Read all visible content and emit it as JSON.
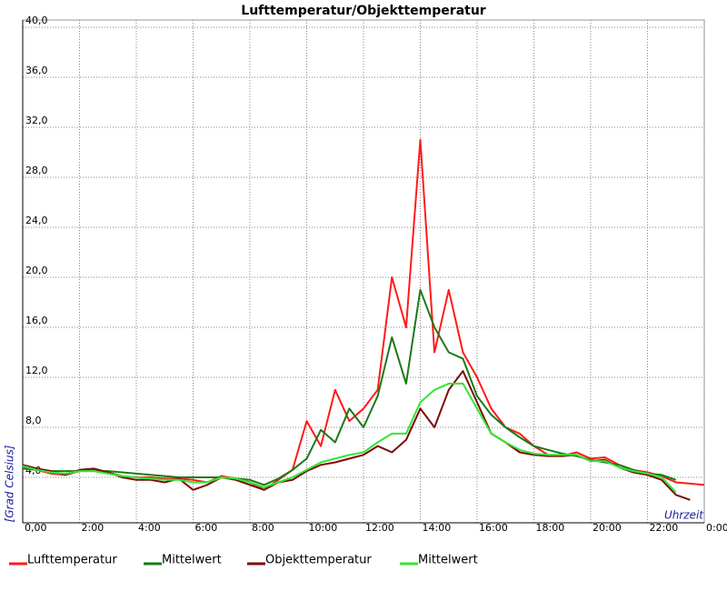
{
  "chart_data": {
    "type": "line",
    "title": "Lufttemperatur/Objekttemperatur",
    "y_label": "[Grad Celsius]",
    "x_label": "Uhrzeit",
    "xlim": [
      0,
      24
    ],
    "ylim": [
      0,
      40
    ],
    "xticks": [
      {
        "value": 0,
        "label": "0,00"
      },
      {
        "value": 2,
        "label": "2:00"
      },
      {
        "value": 4,
        "label": "4:00"
      },
      {
        "value": 6,
        "label": "6:00"
      },
      {
        "value": 8,
        "label": "8:00"
      },
      {
        "value": 10,
        "label": "10:00"
      },
      {
        "value": 12,
        "label": "12:00"
      },
      {
        "value": 14,
        "label": "14:00"
      },
      {
        "value": 16,
        "label": "16:00"
      },
      {
        "value": 18,
        "label": "18:00"
      },
      {
        "value": 20,
        "label": "20:00"
      },
      {
        "value": 22,
        "label": "22:00"
      },
      {
        "value": 24,
        "label": "0:00"
      }
    ],
    "yticks": [
      {
        "value": 4,
        "label": "4,0"
      },
      {
        "value": 8,
        "label": "8,0"
      },
      {
        "value": 12,
        "label": "12,0"
      },
      {
        "value": 16,
        "label": "16,0"
      },
      {
        "value": 20,
        "label": "20,0"
      },
      {
        "value": 24,
        "label": "24,0"
      },
      {
        "value": 28,
        "label": "28,0"
      },
      {
        "value": 32,
        "label": "32,0"
      },
      {
        "value": 36,
        "label": "36,0"
      },
      {
        "value": 40,
        "label": "40,0"
      }
    ],
    "grid": true,
    "x": [
      0,
      0.5,
      1,
      1.5,
      2,
      2.5,
      3,
      3.5,
      4,
      4.5,
      5,
      5.5,
      6,
      6.5,
      7,
      7.5,
      8,
      8.5,
      9,
      9.5,
      10,
      10.5,
      11,
      11.5,
      12,
      12.5,
      13,
      13.5,
      14,
      14.5,
      15,
      15.5,
      16,
      16.5,
      17,
      17.5,
      18,
      18.5,
      19,
      19.5,
      20,
      20.5,
      21,
      21.5,
      22,
      22.5,
      23,
      23.5,
      24
    ],
    "series": [
      {
        "name": "Lufttemperatur",
        "color": "#ff1a1a",
        "values": [
          4.8,
          4.6,
          4.3,
          4.2,
          4.5,
          4.6,
          4.4,
          4.1,
          4.0,
          4.0,
          3.9,
          3.9,
          3.8,
          3.6,
          4.1,
          3.9,
          3.6,
          3.0,
          3.8,
          4.6,
          8.5,
          6.5,
          11,
          8.5,
          9.5,
          11,
          20,
          16,
          31,
          14,
          19,
          14,
          12,
          9.5,
          8,
          7.5,
          6.5,
          5.8,
          5.7,
          6.0,
          5.5,
          5.6,
          5.0,
          4.6,
          4.4,
          4.1,
          3.6,
          3.5,
          3.4
        ]
      },
      {
        "name": "Mittelwert",
        "color": "#1a7a1a",
        "values": [
          4.7,
          4.6,
          4.5,
          4.5,
          4.5,
          4.5,
          4.5,
          4.4,
          4.3,
          4.2,
          4.1,
          4.0,
          4.0,
          4.0,
          4.0,
          3.9,
          3.8,
          3.4,
          3.9,
          4.6,
          5.5,
          7.8,
          6.8,
          9.5,
          8.0,
          10.5,
          15.2,
          11.5,
          19,
          16,
          14,
          13.5,
          10.5,
          9,
          8,
          7.2,
          6.5,
          6.2,
          5.9,
          5.7,
          5.4,
          5.2,
          5.0,
          4.6,
          4.3,
          4.2,
          3.8,
          null,
          null
        ]
      },
      {
        "name": "Objekttemperatur",
        "color": "#7a0a0a",
        "values": [
          5.0,
          4.7,
          4.5,
          4.2,
          4.6,
          4.7,
          4.4,
          4.0,
          3.8,
          3.8,
          3.6,
          3.9,
          3.0,
          3.4,
          4.0,
          3.8,
          3.4,
          3.0,
          3.6,
          3.8,
          4.5,
          5.0,
          5.2,
          5.5,
          5.8,
          6.5,
          6.0,
          7.0,
          9.5,
          8.0,
          11,
          12.5,
          10,
          7.5,
          6.8,
          6.0,
          5.8,
          5.7,
          5.7,
          5.8,
          5.3,
          5.4,
          4.8,
          4.4,
          4.2,
          3.8,
          2.6,
          2.2,
          null
        ]
      },
      {
        "name": "Mittelwert",
        "color": "#33e633",
        "values": [
          4.9,
          4.6,
          4.4,
          4.3,
          4.5,
          4.5,
          4.3,
          4.1,
          4.0,
          3.9,
          3.8,
          3.8,
          3.6,
          3.6,
          4.0,
          3.9,
          3.6,
          3.2,
          3.6,
          4.0,
          4.6,
          5.2,
          5.5,
          5.8,
          6.0,
          6.8,
          7.5,
          7.5,
          10,
          11,
          11.5,
          11.5,
          9.5,
          7.5,
          6.8,
          6.2,
          5.9,
          5.8,
          5.8,
          5.8,
          5.3,
          5.3,
          4.8,
          4.5,
          4.3,
          4.0,
          2.8,
          null,
          null
        ]
      }
    ]
  }
}
